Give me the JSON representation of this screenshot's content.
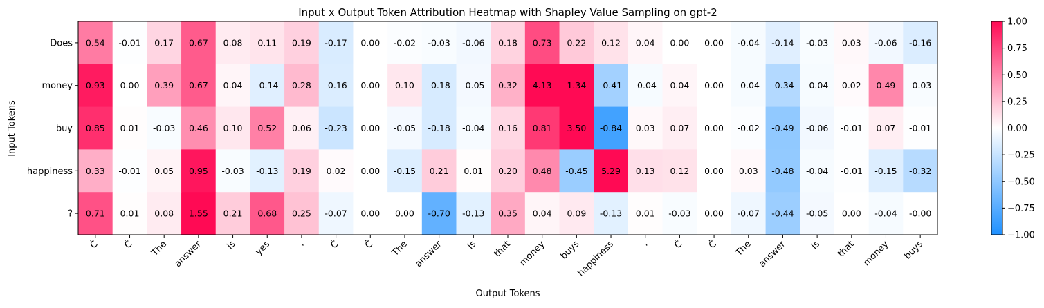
{
  "chart_data": {
    "type": "heatmap",
    "title": "Input x Output Token Attribution Heatmap with Shapley Value Sampling on gpt-2",
    "xlabel": "Output Tokens",
    "ylabel": "Input Tokens",
    "x_tokens": [
      "Ċ",
      "Ċ",
      "The",
      "answer",
      "is",
      "yes",
      ".",
      "Ċ",
      "Ċ",
      "The",
      "answer",
      "is",
      "that",
      "money",
      "buys",
      "happiness",
      ".",
      "Ċ",
      "Ċ",
      "The",
      "answer",
      "is",
      "that",
      "money",
      "buys"
    ],
    "y_tokens": [
      "Does",
      "money",
      "buy",
      "happiness",
      "?"
    ],
    "values": [
      [
        0.54,
        -0.01,
        0.17,
        0.67,
        0.08,
        0.11,
        0.19,
        -0.17,
        0.0,
        -0.02,
        -0.03,
        -0.06,
        0.18,
        0.73,
        0.22,
        0.12,
        0.04,
        0.0,
        0.0,
        -0.04,
        -0.14,
        -0.03,
        0.03,
        -0.06,
        -0.16
      ],
      [
        0.93,
        0.0,
        0.39,
        0.67,
        0.04,
        -0.14,
        0.28,
        -0.16,
        0.0,
        0.1,
        -0.18,
        -0.05,
        0.32,
        4.13,
        1.34,
        -0.41,
        -0.04,
        0.04,
        0.0,
        -0.04,
        -0.34,
        -0.04,
        0.02,
        0.49,
        -0.03
      ],
      [
        0.85,
        0.01,
        -0.03,
        0.46,
        0.1,
        0.52,
        0.06,
        -0.23,
        0.0,
        -0.05,
        -0.18,
        -0.04,
        0.16,
        0.81,
        3.5,
        -0.84,
        0.03,
        0.07,
        0.0,
        -0.02,
        -0.49,
        -0.06,
        -0.01,
        0.07,
        -0.01
      ],
      [
        0.33,
        -0.01,
        0.05,
        0.95,
        -0.03,
        -0.13,
        0.19,
        0.02,
        0.0,
        -0.15,
        0.21,
        0.01,
        0.2,
        0.48,
        -0.45,
        5.29,
        0.13,
        0.12,
        0.0,
        0.03,
        -0.48,
        -0.04,
        -0.01,
        -0.15,
        -0.32
      ],
      [
        0.71,
        0.01,
        0.08,
        1.55,
        0.21,
        0.68,
        0.25,
        -0.07,
        0.0,
        0.0,
        -0.7,
        -0.13,
        0.35,
        0.04,
        0.09,
        -0.13,
        0.01,
        -0.03,
        0.0,
        -0.07,
        -0.44,
        -0.05,
        0.0,
        -0.04,
        -0.0
      ]
    ],
    "value_labels": [
      [
        "0.54",
        "-0.01",
        "0.17",
        "0.67",
        "0.08",
        "0.11",
        "0.19",
        "-0.17",
        "0.00",
        "-0.02",
        "-0.03",
        "-0.06",
        "0.18",
        "0.73",
        "0.22",
        "0.12",
        "0.04",
        "0.00",
        "0.00",
        "-0.04",
        "-0.14",
        "-0.03",
        "0.03",
        "-0.06",
        "-0.16"
      ],
      [
        "0.93",
        "0.00",
        "0.39",
        "0.67",
        "0.04",
        "-0.14",
        "0.28",
        "-0.16",
        "0.00",
        "0.10",
        "-0.18",
        "-0.05",
        "0.32",
        "4.13",
        "1.34",
        "-0.41",
        "-0.04",
        "0.04",
        "0.00",
        "-0.04",
        "-0.34",
        "-0.04",
        "0.02",
        "0.49",
        "-0.03"
      ],
      [
        "0.85",
        "0.01",
        "-0.03",
        "0.46",
        "0.10",
        "0.52",
        "0.06",
        "-0.23",
        "0.00",
        "-0.05",
        "-0.18",
        "-0.04",
        "0.16",
        "0.81",
        "3.50",
        "-0.84",
        "0.03",
        "0.07",
        "0.00",
        "-0.02",
        "-0.49",
        "-0.06",
        "-0.01",
        "0.07",
        "-0.01"
      ],
      [
        "0.33",
        "-0.01",
        "0.05",
        "0.95",
        "-0.03",
        "-0.13",
        "0.19",
        "0.02",
        "0.00",
        "-0.15",
        "0.21",
        "0.01",
        "0.20",
        "0.48",
        "-0.45",
        "5.29",
        "0.13",
        "0.12",
        "0.00",
        "0.03",
        "-0.48",
        "-0.04",
        "-0.01",
        "-0.15",
        "-0.32"
      ],
      [
        "0.71",
        "0.01",
        "0.08",
        "1.55",
        "0.21",
        "0.68",
        "0.25",
        "-0.07",
        "0.00",
        "0.00",
        "-0.70",
        "-0.13",
        "0.35",
        "0.04",
        "0.09",
        "-0.13",
        "0.01",
        "-0.03",
        "0.00",
        "-0.07",
        "-0.44",
        "-0.05",
        "0.00",
        "-0.04",
        "-0.00"
      ]
    ],
    "vmin": -1.0,
    "vmax": 1.0,
    "colormap": {
      "negative": "#1e90ff",
      "zero": "#ffffff",
      "positive": "#ff0a54"
    },
    "colorbar_ticks": [
      1.0,
      0.75,
      0.5,
      0.25,
      0.0,
      -0.25,
      -0.5,
      -0.75,
      -1.0
    ],
    "colorbar_tick_labels": [
      "1.00",
      "0.75",
      "0.50",
      "0.25",
      "0.00",
      "−0.25",
      "−0.50",
      "−0.75",
      "−1.00"
    ],
    "grid": false
  }
}
